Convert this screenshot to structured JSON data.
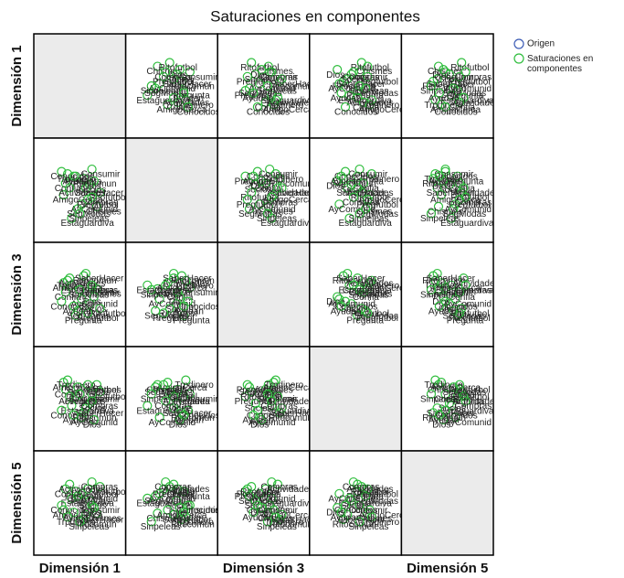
{
  "chart_data": {
    "type": "scatter_matrix",
    "title": "Saturaciones en componentes",
    "dimensions": [
      "Dimensión 1",
      null,
      "Dimensión 3",
      null,
      "Dimensión 5"
    ],
    "lim": [
      -1,
      1
    ],
    "legend": [
      {
        "name": "Origen",
        "color": "#3b5bb5"
      },
      {
        "name": "Saturaciones en componentes",
        "color": "#2ebd3c"
      }
    ],
    "legend_position": "right",
    "series": [
      {
        "name": "Chismes",
        "values": [
          0.42,
          -0.35,
          0.12,
          0.3,
          -0.22
        ]
      },
      {
        "name": "Pregunta",
        "values": [
          -0.1,
          0.3,
          -0.45,
          0.05,
          0.25
        ]
      },
      {
        "name": "Estaguardiva",
        "values": [
          -0.2,
          -0.6,
          0.2,
          -0.15,
          0.1
        ]
      },
      {
        "name": "Ritocomun",
        "values": [
          0.1,
          0.25,
          0.4,
          -0.3,
          -0.35
        ]
      },
      {
        "name": "Confia",
        "values": [
          -0.35,
          0.15,
          0.05,
          0.2,
          0.3
        ]
      },
      {
        "name": "Socios",
        "values": [
          0.25,
          0.12,
          -0.2,
          -0.1,
          0.05
        ]
      },
      {
        "name": "Consumir",
        "values": [
          0.3,
          0.45,
          0.15,
          0.1,
          -0.05
        ]
      },
      {
        "name": "AmigoCerca",
        "values": [
          -0.4,
          -0.1,
          0.25,
          0.35,
          -0.15
        ]
      },
      {
        "name": "AyComunid",
        "values": [
          0.05,
          -0.3,
          -0.1,
          -0.4,
          0.2
        ]
      },
      {
        "name": "Trpdinero",
        "values": [
          -0.3,
          0.35,
          0.3,
          0.4,
          -0.3
        ]
      },
      {
        "name": "Ritofutbol",
        "values": [
          0.5,
          -0.05,
          -0.3,
          0.15,
          0.35
        ]
      },
      {
        "name": "SaberHacer",
        "values": [
          0.15,
          0.05,
          0.45,
          -0.2,
          -0.25
        ]
      },
      {
        "name": "SegModas",
        "values": [
          -0.05,
          -0.4,
          -0.35,
          0.25,
          0.15
        ]
      },
      {
        "name": "Dios",
        "values": [
          0.35,
          0.2,
          -0.05,
          -0.45,
          -0.1
        ]
      },
      {
        "name": "Actividades",
        "values": [
          -0.25,
          0.05,
          0.35,
          0.05,
          0.4
        ]
      },
      {
        "name": "Pregfutbol",
        "values": [
          0.2,
          -0.2,
          -0.4,
          0.3,
          0.3
        ]
      },
      {
        "name": "Conocidos",
        "values": [
          -0.45,
          0.4,
          -0.15,
          -0.25,
          -0.05
        ]
      },
      {
        "name": "Sinpeleas",
        "values": [
          0.0,
          -0.5,
          0.1,
          0.1,
          -0.4
        ]
      },
      {
        "name": "Compras",
        "values": [
          0.3,
          -0.15,
          0.2,
          -0.05,
          0.45
        ]
      },
      {
        "name": "Ayudan",
        "values": [
          -0.15,
          0.3,
          -0.25,
          -0.35,
          -0.2
        ]
      }
    ]
  }
}
